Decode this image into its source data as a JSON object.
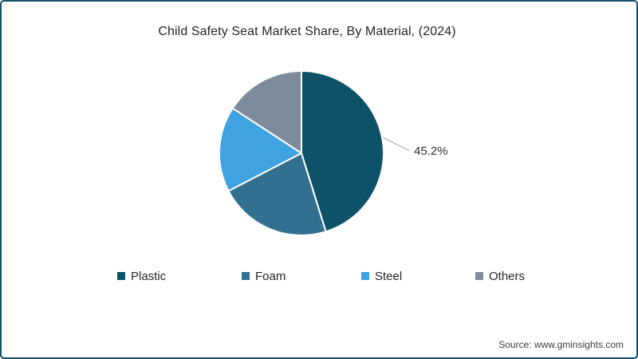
{
  "chart_data": {
    "type": "pie",
    "title": "Child Safety Seat Market Share, By Material, (2024)",
    "labels": [
      "Plastic",
      "Foam",
      "Steel",
      "Others"
    ],
    "values": [
      45.2,
      22.2,
      16.8,
      15.8
    ],
    "colors": [
      "#0e5268",
      "#31718f",
      "#3fa2e1",
      "#7d8b9c"
    ],
    "start_angle_deg": 0,
    "direction": "clockwise",
    "legend_position": "bottom",
    "data_labels": [
      {
        "slice": "Plastic",
        "text": "45.2%"
      }
    ]
  },
  "footer": {
    "source": "Source: www.gminsights.com"
  },
  "style_colors": {
    "frame_border": "#14506e",
    "slice_separator": "#ffffff",
    "leader_line": "#a6a6a6",
    "label_text": "#333333"
  }
}
